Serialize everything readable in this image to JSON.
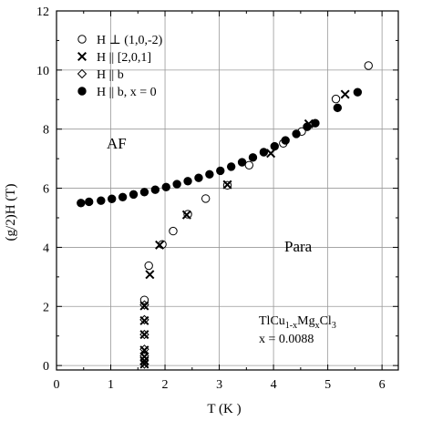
{
  "chart_data": {
    "type": "scatter",
    "xlabel": "T (K )",
    "ylabel": "(g/2)H (T)",
    "xlim": [
      0,
      6.3
    ],
    "ylim": [
      -0.15,
      12
    ],
    "xticks": [
      "0",
      "1",
      "2",
      "3",
      "4",
      "5",
      "6"
    ],
    "yticks": [
      "0",
      "2",
      "4",
      "6",
      "8",
      "10",
      "12"
    ],
    "grid": true,
    "legend_position": "top-left",
    "annotations": {
      "af": "AF",
      "para": "Para",
      "compound_base": "TlCu",
      "compound_sub1": "1-x",
      "compound_mid": "Mg",
      "compound_sub2": "x",
      "compound_end": "Cl",
      "compound_sub3": "3",
      "concentration": "x = 0.0088"
    },
    "series": [
      {
        "name": "H ⊥ (1,0,-2)",
        "marker": "open-circle",
        "points": [
          [
            1.62,
            2.22
          ],
          [
            1.7,
            3.38
          ],
          [
            1.95,
            4.1
          ],
          [
            2.15,
            4.55
          ],
          [
            2.42,
            5.12
          ],
          [
            2.75,
            5.65
          ],
          [
            3.15,
            6.1
          ],
          [
            3.55,
            6.78
          ],
          [
            4.18,
            7.52
          ],
          [
            4.52,
            7.92
          ],
          [
            5.15,
            9.02
          ],
          [
            5.75,
            10.15
          ]
        ]
      },
      {
        "name": "H || [2,0,1]",
        "marker": "cross",
        "points": [
          [
            1.62,
            0.05
          ],
          [
            1.62,
            0.15
          ],
          [
            1.62,
            0.3
          ],
          [
            1.62,
            0.52
          ],
          [
            1.62,
            1.05
          ],
          [
            1.62,
            1.52
          ],
          [
            1.62,
            2.02
          ],
          [
            1.72,
            3.08
          ],
          [
            1.9,
            4.08
          ],
          [
            2.4,
            5.1
          ],
          [
            3.15,
            6.12
          ],
          [
            3.95,
            7.18
          ],
          [
            4.65,
            8.18
          ],
          [
            5.32,
            9.18
          ]
        ]
      },
      {
        "name": "H || b",
        "marker": "open-diamond",
        "points": [
          [
            1.62,
            0.05
          ],
          [
            1.62,
            0.32
          ],
          [
            1.62,
            0.55
          ],
          [
            1.62,
            1.05
          ],
          [
            1.62,
            1.55
          ],
          [
            1.62,
            2.05
          ]
        ]
      },
      {
        "name": "H || b, x = 0",
        "marker": "filled-circle",
        "points": [
          [
            0.45,
            5.5
          ],
          [
            0.6,
            5.54
          ],
          [
            0.82,
            5.58
          ],
          [
            1.02,
            5.64
          ],
          [
            1.22,
            5.7
          ],
          [
            1.42,
            5.79
          ],
          [
            1.62,
            5.87
          ],
          [
            1.82,
            5.95
          ],
          [
            2.02,
            6.04
          ],
          [
            2.22,
            6.14
          ],
          [
            2.42,
            6.24
          ],
          [
            2.62,
            6.35
          ],
          [
            2.82,
            6.47
          ],
          [
            3.02,
            6.59
          ],
          [
            3.22,
            6.73
          ],
          [
            3.42,
            6.88
          ],
          [
            3.62,
            7.04
          ],
          [
            3.82,
            7.22
          ],
          [
            4.02,
            7.42
          ],
          [
            4.22,
            7.62
          ],
          [
            4.42,
            7.84
          ],
          [
            4.62,
            8.08
          ],
          [
            4.77,
            8.2
          ],
          [
            5.18,
            8.72
          ],
          [
            5.55,
            9.25
          ]
        ]
      }
    ]
  }
}
